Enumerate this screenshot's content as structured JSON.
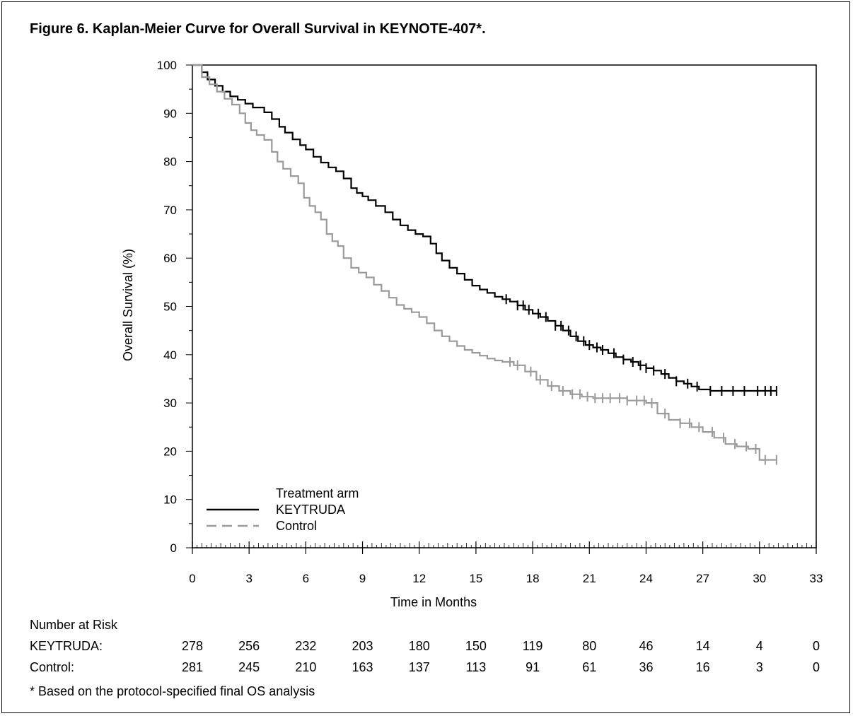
{
  "figure": {
    "title": "Figure 6. Kaplan-Meier Curve for Overall Survival in KEYNOTE-407*.",
    "footnote": "* Based on the protocol-specified final OS analysis"
  },
  "chart_data": {
    "type": "line",
    "subtype": "kaplan-meier step",
    "title": "",
    "xlabel": "Time in Months",
    "ylabel": "Overall Survival (%)",
    "xlim": [
      0,
      33
    ],
    "ylim": [
      0,
      100
    ],
    "x_ticks": [
      0,
      3,
      6,
      9,
      12,
      15,
      18,
      21,
      24,
      27,
      30,
      33
    ],
    "y_ticks": [
      0,
      10,
      20,
      30,
      40,
      50,
      60,
      70,
      80,
      90,
      100
    ],
    "grid": false,
    "legend": {
      "title": "Treatment arm",
      "placement": "bottom-left",
      "entries": [
        {
          "name": "KEYTRUDA",
          "color": "#000000",
          "dash": "solid"
        },
        {
          "name": "Control",
          "color": "#9a9a9a",
          "dash": "dashed"
        }
      ]
    },
    "series": [
      {
        "name": "KEYTRUDA",
        "color": "#000000",
        "x": [
          0,
          0.5,
          0.8,
          1.2,
          1.6,
          2.0,
          2.4,
          2.8,
          3.2,
          3.8,
          4.2,
          4.6,
          4.9,
          5.3,
          5.7,
          6.0,
          6.4,
          6.8,
          7.2,
          7.6,
          8.0,
          8.4,
          8.7,
          9.0,
          9.3,
          9.7,
          10.2,
          10.6,
          11.0,
          11.4,
          11.8,
          12.2,
          12.6,
          12.9,
          13.2,
          13.6,
          14.0,
          14.4,
          14.8,
          15.2,
          15.6,
          16.0,
          16.4,
          16.8,
          17.2,
          17.6,
          18.0,
          18.4,
          18.8,
          19.2,
          19.6,
          20.0,
          20.4,
          20.8,
          21.2,
          21.6,
          22.0,
          22.4,
          22.8,
          23.2,
          23.6,
          24.0,
          24.4,
          24.8,
          25.2,
          25.6,
          26.0,
          26.4,
          26.8,
          27.4,
          28.2,
          29.0,
          30.0,
          30.9
        ],
        "y": [
          100,
          98.5,
          97,
          95.7,
          94.5,
          93.5,
          92.8,
          92,
          91.2,
          90.2,
          88.8,
          87.2,
          86,
          84.6,
          83.4,
          82.5,
          81,
          79.8,
          78.8,
          78,
          76.5,
          74.5,
          73.5,
          72.8,
          72,
          70.8,
          69.5,
          68,
          66.8,
          65.8,
          65,
          64.5,
          63,
          61,
          59.5,
          58,
          56.8,
          55.5,
          54.3,
          53.5,
          52.8,
          52,
          51.5,
          51,
          50.2,
          49.3,
          48.5,
          47.8,
          47,
          46,
          45,
          43.8,
          42.8,
          42,
          41.5,
          41,
          40.3,
          39.5,
          39,
          38.5,
          37.8,
          37.2,
          36.7,
          36,
          35.2,
          34.5,
          34,
          33.4,
          32.8,
          32.5,
          32.5,
          32.5,
          32.5,
          32.5
        ],
        "censor_x": [
          16.6,
          17.2,
          17.5,
          17.8,
          18.3,
          18.7,
          19.2,
          19.5,
          19.9,
          20.3,
          20.7,
          21.0,
          21.4,
          21.7,
          22.3,
          22.8,
          23.3,
          23.7,
          24.0,
          24.4,
          25.0,
          25.6,
          26.2,
          26.7,
          27.4,
          28.0,
          28.6,
          29.2,
          29.9,
          30.3,
          30.6,
          30.9
        ]
      },
      {
        "name": "Control",
        "color": "#9a9a9a",
        "x": [
          0,
          0.5,
          0.9,
          1.3,
          1.7,
          2.1,
          2.5,
          2.8,
          3.1,
          3.4,
          3.8,
          4.2,
          4.5,
          4.8,
          5.2,
          5.6,
          5.9,
          6.2,
          6.5,
          6.8,
          7.1,
          7.4,
          7.7,
          8.0,
          8.4,
          8.8,
          9.2,
          9.6,
          10.0,
          10.4,
          10.8,
          11.2,
          11.6,
          12.0,
          12.4,
          12.8,
          13.2,
          13.6,
          14.0,
          14.4,
          14.8,
          15.2,
          15.6,
          16.0,
          16.4,
          17.0,
          17.6,
          18.2,
          18.8,
          19.4,
          20.0,
          20.6,
          21.2,
          22.0,
          23.0,
          24.0,
          24.6,
          25.2,
          25.8,
          26.4,
          27.0,
          27.6,
          28.2,
          28.8,
          29.4,
          30.0,
          30.9
        ],
        "y": [
          100,
          97.5,
          96,
          94.5,
          93,
          91.8,
          90,
          88,
          86.5,
          85.5,
          84.5,
          82,
          80,
          78.5,
          77,
          75.5,
          72.5,
          70.8,
          69.5,
          68,
          65,
          63.5,
          62.5,
          60,
          58,
          57,
          56,
          54.5,
          53.2,
          51.8,
          50.3,
          49.5,
          48.8,
          47.8,
          46.5,
          45,
          43.8,
          42.8,
          41.8,
          41,
          40.4,
          39.8,
          39.2,
          38.8,
          38.5,
          37.8,
          36.5,
          34.8,
          33.5,
          32.5,
          31.8,
          31.3,
          31,
          31,
          30.5,
          30,
          27.8,
          26.5,
          25.8,
          25,
          24,
          22.8,
          21.5,
          21,
          20.5,
          18.2,
          18.2
        ],
        "censor_x": [
          16.8,
          17.2,
          17.9,
          18.4,
          19.0,
          19.6,
          20.1,
          20.5,
          20.9,
          21.3,
          21.7,
          22.1,
          22.6,
          23.0,
          23.5,
          23.9,
          24.3,
          25.0,
          25.8,
          26.3,
          26.8,
          27.5,
          28.1,
          28.7,
          29.3,
          29.8,
          30.3,
          30.9
        ]
      }
    ],
    "risk_table": {
      "title": "Number at Risk",
      "times": [
        0,
        3,
        6,
        9,
        12,
        15,
        18,
        21,
        24,
        27,
        30,
        33
      ],
      "rows": [
        {
          "label": "KEYTRUDA:",
          "values": [
            "278",
            "256",
            "232",
            "203",
            "180",
            "150",
            "119",
            "80",
            "46",
            "14",
            "4",
            "0"
          ]
        },
        {
          "label": "Control:",
          "values": [
            "281",
            "245",
            "210",
            "163",
            "137",
            "113",
            "91",
            "61",
            "36",
            "16",
            "3",
            "0"
          ]
        }
      ]
    }
  }
}
